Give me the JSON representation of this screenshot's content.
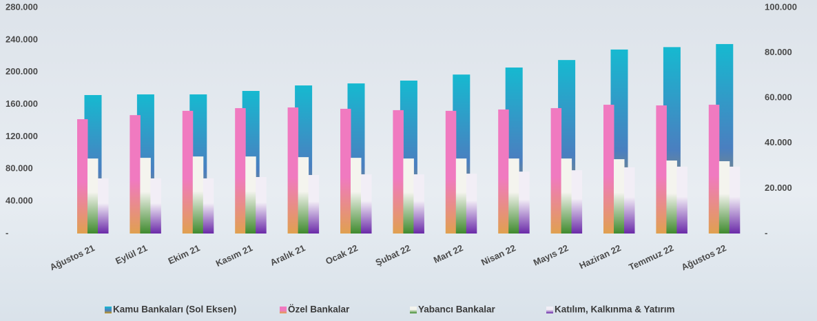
{
  "chart_data": {
    "type": "bar",
    "categories": [
      "Ağustos 21",
      "Eylül 21",
      "Ekim 21",
      "Kasım 21",
      "Aralık 21",
      "Ocak 22",
      "Şubat 22",
      "Mart 22",
      "Nisan 22",
      "Mayıs 22",
      "Haziran 22",
      "Temmuz 22",
      "Ağustos 22"
    ],
    "series": [
      {
        "name": "Kamu Bankaları (Sol Eksen)",
        "color": "#16b9d0",
        "values": [
          171600,
          172400,
          172400,
          176700,
          183500,
          186000,
          189500,
          197000,
          205700,
          215000,
          228000,
          231000,
          234800
        ]
      },
      {
        "name": "Özel Bankalar",
        "color": "#f07ac0",
        "axis": "y2",
        "values": [
          50600,
          52400,
          54300,
          55500,
          55800,
          55200,
          54600,
          54300,
          54900,
          55500,
          57000,
          56700,
          57000
        ]
      },
      {
        "name": "Yabancı Bankalar",
        "color": "#3f8a2e",
        "axis": "y2",
        "values": [
          33200,
          33500,
          34100,
          34100,
          33800,
          33500,
          33200,
          33200,
          33200,
          33200,
          32900,
          32300,
          32000
        ]
      },
      {
        "name": "Katılım, Kalkınma & Yatırım",
        "color": "#6a2aa8",
        "axis": "y2",
        "values": [
          24400,
          24400,
          24400,
          25000,
          25900,
          26200,
          26200,
          26500,
          27400,
          28000,
          29300,
          29600,
          29600
        ]
      }
    ],
    "ylim": [
      0,
      280000
    ],
    "yticks": [
      {
        "value": 0,
        "label": "-"
      },
      {
        "value": 40000,
        "label": "40.000"
      },
      {
        "value": 80000,
        "label": "80.000"
      },
      {
        "value": 120000,
        "label": "120.000"
      },
      {
        "value": 160000,
        "label": "160.000"
      },
      {
        "value": 200000,
        "label": "200.000"
      },
      {
        "value": 240000,
        "label": "240.000"
      },
      {
        "value": 280000,
        "label": "280.000"
      }
    ],
    "y2lim": [
      0,
      100000
    ],
    "y2ticks": [
      {
        "value": 0,
        "label": "-"
      },
      {
        "value": 20000,
        "label": "20.000"
      },
      {
        "value": 40000,
        "label": "40.000"
      },
      {
        "value": 60000,
        "label": "60.000"
      },
      {
        "value": 80000,
        "label": "80.000"
      },
      {
        "value": 100000,
        "label": "100.000"
      }
    ],
    "legend": "bottom",
    "grid": false
  }
}
